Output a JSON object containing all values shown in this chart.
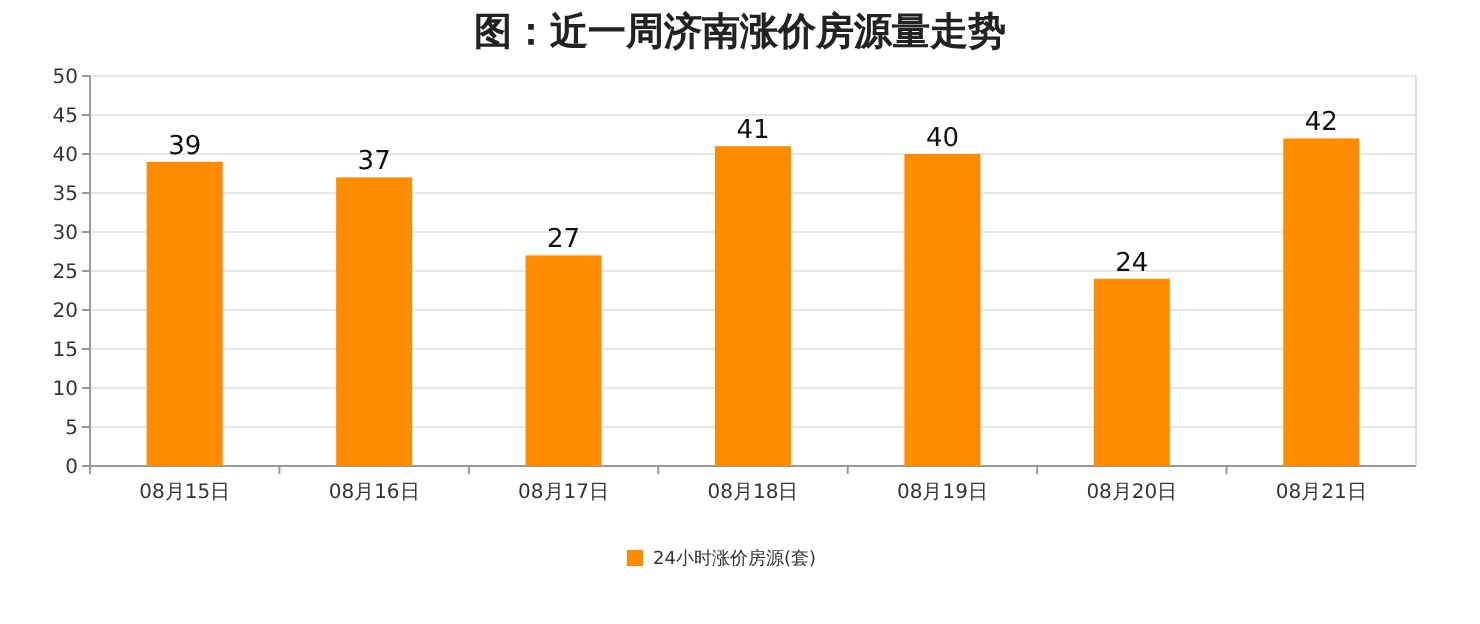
{
  "chart_data": {
    "type": "bar",
    "title": "图：近一周济南涨价房源量走势",
    "categories": [
      "08月15日",
      "08月16日",
      "08月17日",
      "08月18日",
      "08月19日",
      "08月20日",
      "08月21日"
    ],
    "series": [
      {
        "name": "24小时涨价房源(套)",
        "color": "#ff8c00",
        "values": [
          39,
          37,
          27,
          41,
          40,
          24,
          42
        ]
      }
    ],
    "ylim": [
      0,
      50
    ],
    "yticks": [
      0,
      5,
      10,
      15,
      20,
      25,
      30,
      35,
      40,
      45,
      50
    ],
    "grid": "y",
    "data_labels": true,
    "legend": "bottom"
  }
}
